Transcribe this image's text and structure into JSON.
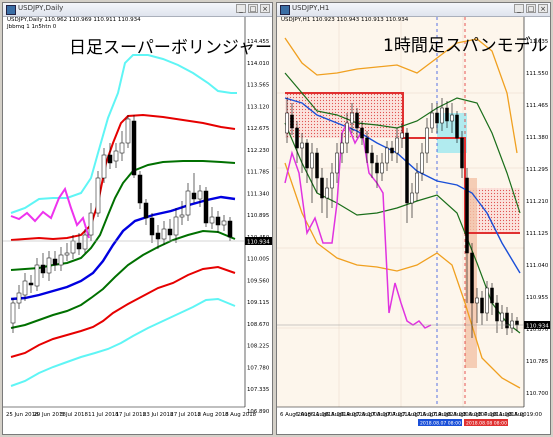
{
  "left_window": {
    "title": "USDJPY,Daily",
    "symbol_line": "USDJPY,Daily 110.962 110.969 110.911 110.934",
    "indicator_line": "Jbbmq 1 1n5htn 0",
    "overlay_label": "日足スーパーボリンジャー",
    "price_tag": "110.934",
    "price_labels": [
      "114.455",
      "114.010",
      "113.565",
      "113.120",
      "112.675",
      "112.230",
      "111.785",
      "111.340",
      "110.895",
      "110.450",
      "110.005",
      "109.560",
      "109.115",
      "108.670",
      "108.225",
      "107.780",
      "107.335",
      "106.890"
    ],
    "date_labels": [
      "25 Jun 2018",
      "29 Jun 2018",
      "5 Jul 2018",
      "11 Jul 2018",
      "17 Jul 2018",
      "23 Jul 2018",
      "27 Jul 2018",
      "2 Aug 2018",
      "8 Aug 2018"
    ],
    "colors": {
      "upper3": "#5ff5f5",
      "upper2": "#e60000",
      "upper1": "#007000",
      "middle": "#0000e0",
      "lagging": "#ee33ee",
      "candle": "#000000"
    }
  },
  "right_window": {
    "title": "USDJPY,H1",
    "symbol_line": "USDJPY,H1 110.923 110.943 110.913 110.934",
    "overlay_label": "1時間足スパンモデル",
    "price_tag": "110.934",
    "price_labels": [
      "111.635",
      "111.550",
      "111.465",
      "111.380",
      "111.295",
      "111.210",
      "111.125",
      "111.040",
      "110.955",
      "110.870",
      "110.785",
      "110.700"
    ],
    "date_labels": [
      "6 Aug 2018",
      "6 Aug 11:00",
      "6 Aug 15:00",
      "6 Aug 19:00",
      "6 Aug 23:00",
      "7 Aug 03:00",
      "7 Aug 07:00",
      "7 Aug 11:00",
      "7 Aug 15:00",
      "7 Aug 19:00",
      "7 Aug 23:00",
      "8 Aug 03:00",
      "8 Aug 07:00",
      "8 Aug 11:00",
      "8 Aug 15:00",
      "8 Aug 19:00"
    ],
    "time_tag_blue": "2018.08.07 08:00",
    "time_tag_red": "2018.08.08 08:00",
    "colors": {
      "background": "#fdf6ec",
      "span_red": "#e03030",
      "span_blue": "#1a4fd8",
      "bb_outer": "#f0a020",
      "bb_inner": "#1a6e1a",
      "chikou": "#e033e0",
      "cloud_red": "#f4c0c0",
      "cloud_blue": "#9ee8f0"
    }
  },
  "window_buttons": {
    "minimize": "_",
    "maximize": "□",
    "close": "×"
  }
}
